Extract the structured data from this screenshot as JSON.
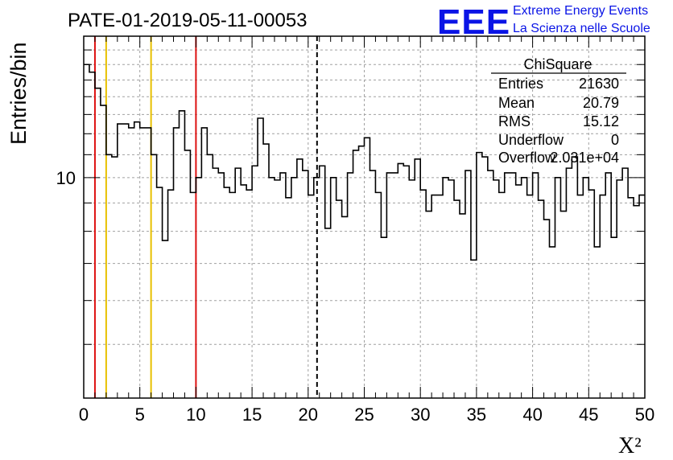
{
  "chart_data": {
    "type": "histogram-step",
    "title": "PATE-01-2019-05-11-00053",
    "xlabel": "X²",
    "ylabel": "Entries/bin",
    "xlim": [
      0,
      50
    ],
    "ylim": [
      4,
      18
    ],
    "yscale": "log",
    "x_ticks": [
      "0",
      "5",
      "10",
      "15",
      "20",
      "25",
      "30",
      "35",
      "40",
      "45",
      "50"
    ],
    "y_ticks": [
      "10"
    ],
    "grid": true,
    "bin_width": 0.5,
    "values": [
      16,
      15.5,
      14.5,
      13.5,
      11,
      10.9,
      12.5,
      12.5,
      12.3,
      12.6,
      12.3,
      12.3,
      11,
      9.6,
      7.7,
      9.5,
      12.3,
      13.2,
      11.2,
      9.4,
      10,
      12.3,
      11,
      10.4,
      10.2,
      9.6,
      9.4,
      10.4,
      9.7,
      9.5,
      10.5,
      12.8,
      11.5,
      10,
      9.9,
      10.2,
      9.2,
      10,
      10.8,
      10.3,
      9.3,
      10,
      10.5,
      8.1,
      10,
      9.1,
      8.5,
      10.2,
      11.2,
      11.4,
      11.8,
      10.3,
      9.4,
      7.8,
      10.2,
      10.2,
      10.6,
      10.5,
      9.9,
      10.8,
      9.5,
      8.7,
      9.3,
      9.3,
      10,
      9.9,
      9.1,
      8.6,
      10.3,
      7.1,
      11.1,
      10.9,
      10.3,
      9.9,
      9.4,
      10.2,
      10.2,
      9.7,
      10,
      9.3,
      10.2,
      9.1,
      8.4,
      7.5,
      10,
      8.7,
      10.4,
      10.9,
      9.3,
      10,
      9.5,
      7.5,
      9.3,
      10.2,
      7.8,
      9.9,
      10.4,
      9.2,
      8.9,
      9.3
    ],
    "vertical_lines": [
      {
        "x": 1,
        "color": "#dd1111",
        "style": "solid"
      },
      {
        "x": 2,
        "color": "#e8c000",
        "style": "solid"
      },
      {
        "x": 6,
        "color": "#e8c000",
        "style": "solid"
      },
      {
        "x": 10,
        "color": "#dd1111",
        "style": "solid"
      },
      {
        "x": 20.79,
        "color": "#000000",
        "style": "dashed"
      }
    ],
    "stats_box": {
      "title": "ChiSquare",
      "rows": [
        {
          "label": "Entries",
          "value": "21630"
        },
        {
          "label": "Mean",
          "value": "20.79"
        },
        {
          "label": "RMS",
          "value": "15.12"
        },
        {
          "label": "Underflow",
          "value": "0"
        },
        {
          "label": "Overflow",
          "value": "2.031e+04"
        }
      ]
    },
    "colors": {
      "histogram": "#000000",
      "grid": "#a0a0a0",
      "logo": "#0a14e6"
    }
  },
  "logo": {
    "mark": "EEE",
    "line1": "Extreme Energy Events",
    "line2": "La Scienza nelle Scuole"
  }
}
